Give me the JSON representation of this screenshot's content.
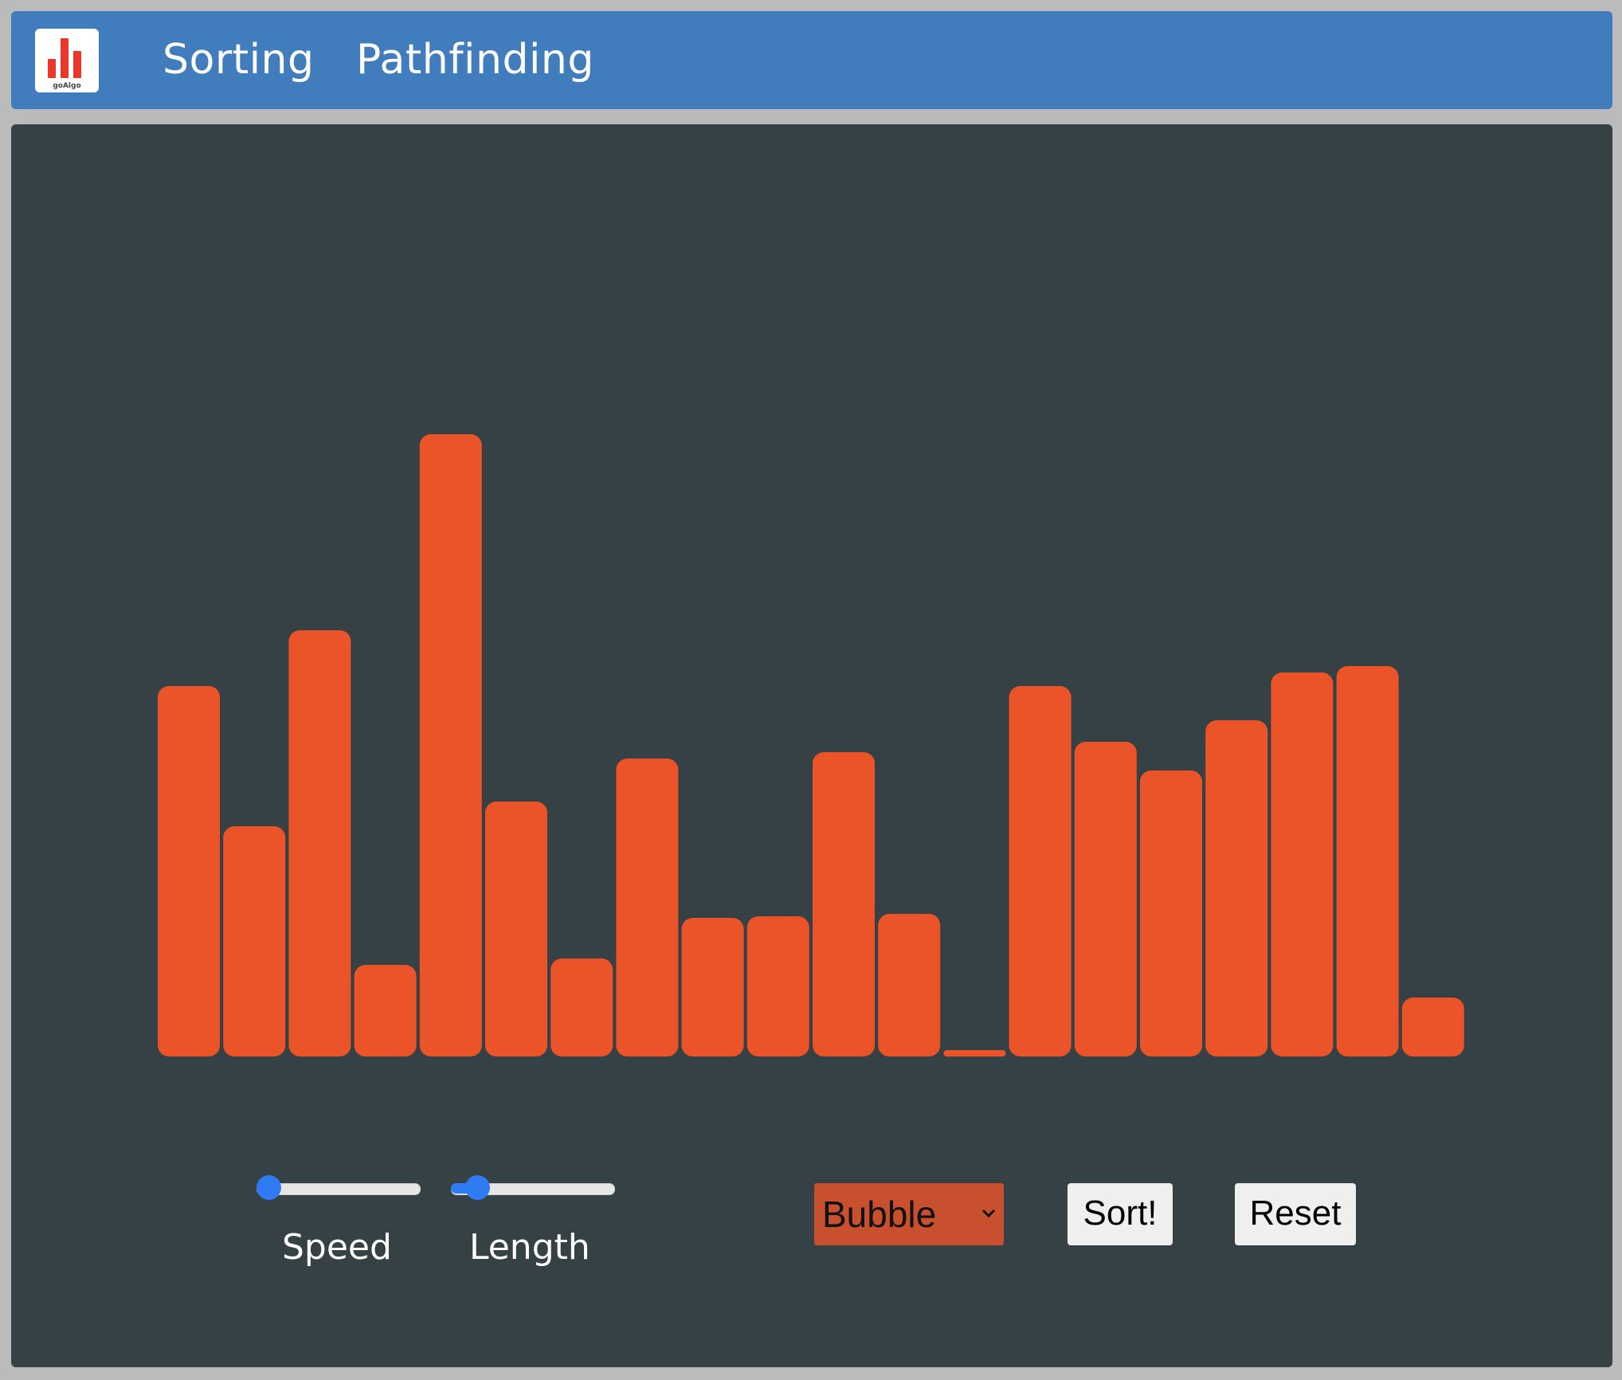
{
  "app": {
    "logo_text": "goAlgo"
  },
  "nav": {
    "sorting": "Sorting",
    "pathfinding": "Pathfinding"
  },
  "colors": {
    "navbar": "#417dbd",
    "panel": "#354144",
    "bar": "#eb5428",
    "slider_accent": "#2f7bf4",
    "select_bg": "#c8502e"
  },
  "controls": {
    "speed": {
      "label": "Speed",
      "value": 0
    },
    "length": {
      "label": "Length",
      "value": 0.1
    },
    "algorithm": {
      "selected": "Bubble"
    },
    "sort_label": "Sort!",
    "reset_label": "Reset"
  },
  "bars": [
    465,
    289,
    535,
    115,
    781,
    320,
    123,
    374,
    174,
    176,
    382,
    179,
    8,
    465,
    395,
    359,
    422,
    482,
    490,
    74
  ]
}
